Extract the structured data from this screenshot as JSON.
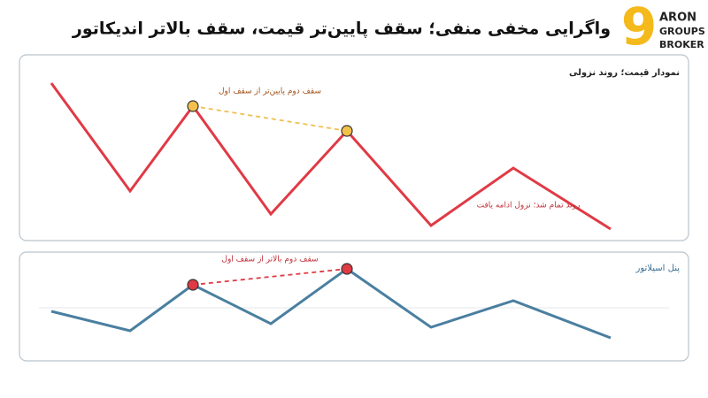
{
  "header": {
    "title": "واگرایی مخفی منفی؛ سقف پایین‌تر قیمت، سقف بالاتر اندیکاتور",
    "logo": {
      "mark": "9",
      "lines": [
        "ARON",
        "GROUPS",
        "BROKER"
      ]
    }
  },
  "price_panel": {
    "label": "نمودار قیمت؛ روند نزولی",
    "annotations": [
      "سقف دوم پایین‌تر از سقف اول",
      "روند تمام شد؛ نزول ادامه یافت"
    ]
  },
  "oscillator_panel": {
    "label": "پنل اسیلاتور",
    "annotations": [
      "سقف دوم بالاتر از سقف اول"
    ]
  }
}
